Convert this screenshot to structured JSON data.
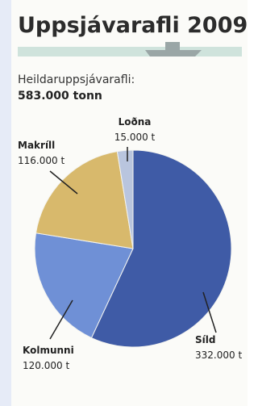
{
  "chart_data": {
    "type": "pie",
    "title": "Uppsjávarafli 2009",
    "subtitle": "Heildaruppsjávarafli:",
    "total_label": "583.000 tonn",
    "categories": [
      "Síld",
      "Kolmunni",
      "Makríll",
      "Loðna"
    ],
    "values": [
      332000,
      120000,
      116000,
      15000
    ],
    "value_labels": [
      "332.000 t",
      "120.000 t",
      "116.000 t",
      "15.000 t"
    ],
    "colors": [
      "#3f5ba6",
      "#6f90d6",
      "#d8b96c",
      "#b9c5de"
    ]
  }
}
